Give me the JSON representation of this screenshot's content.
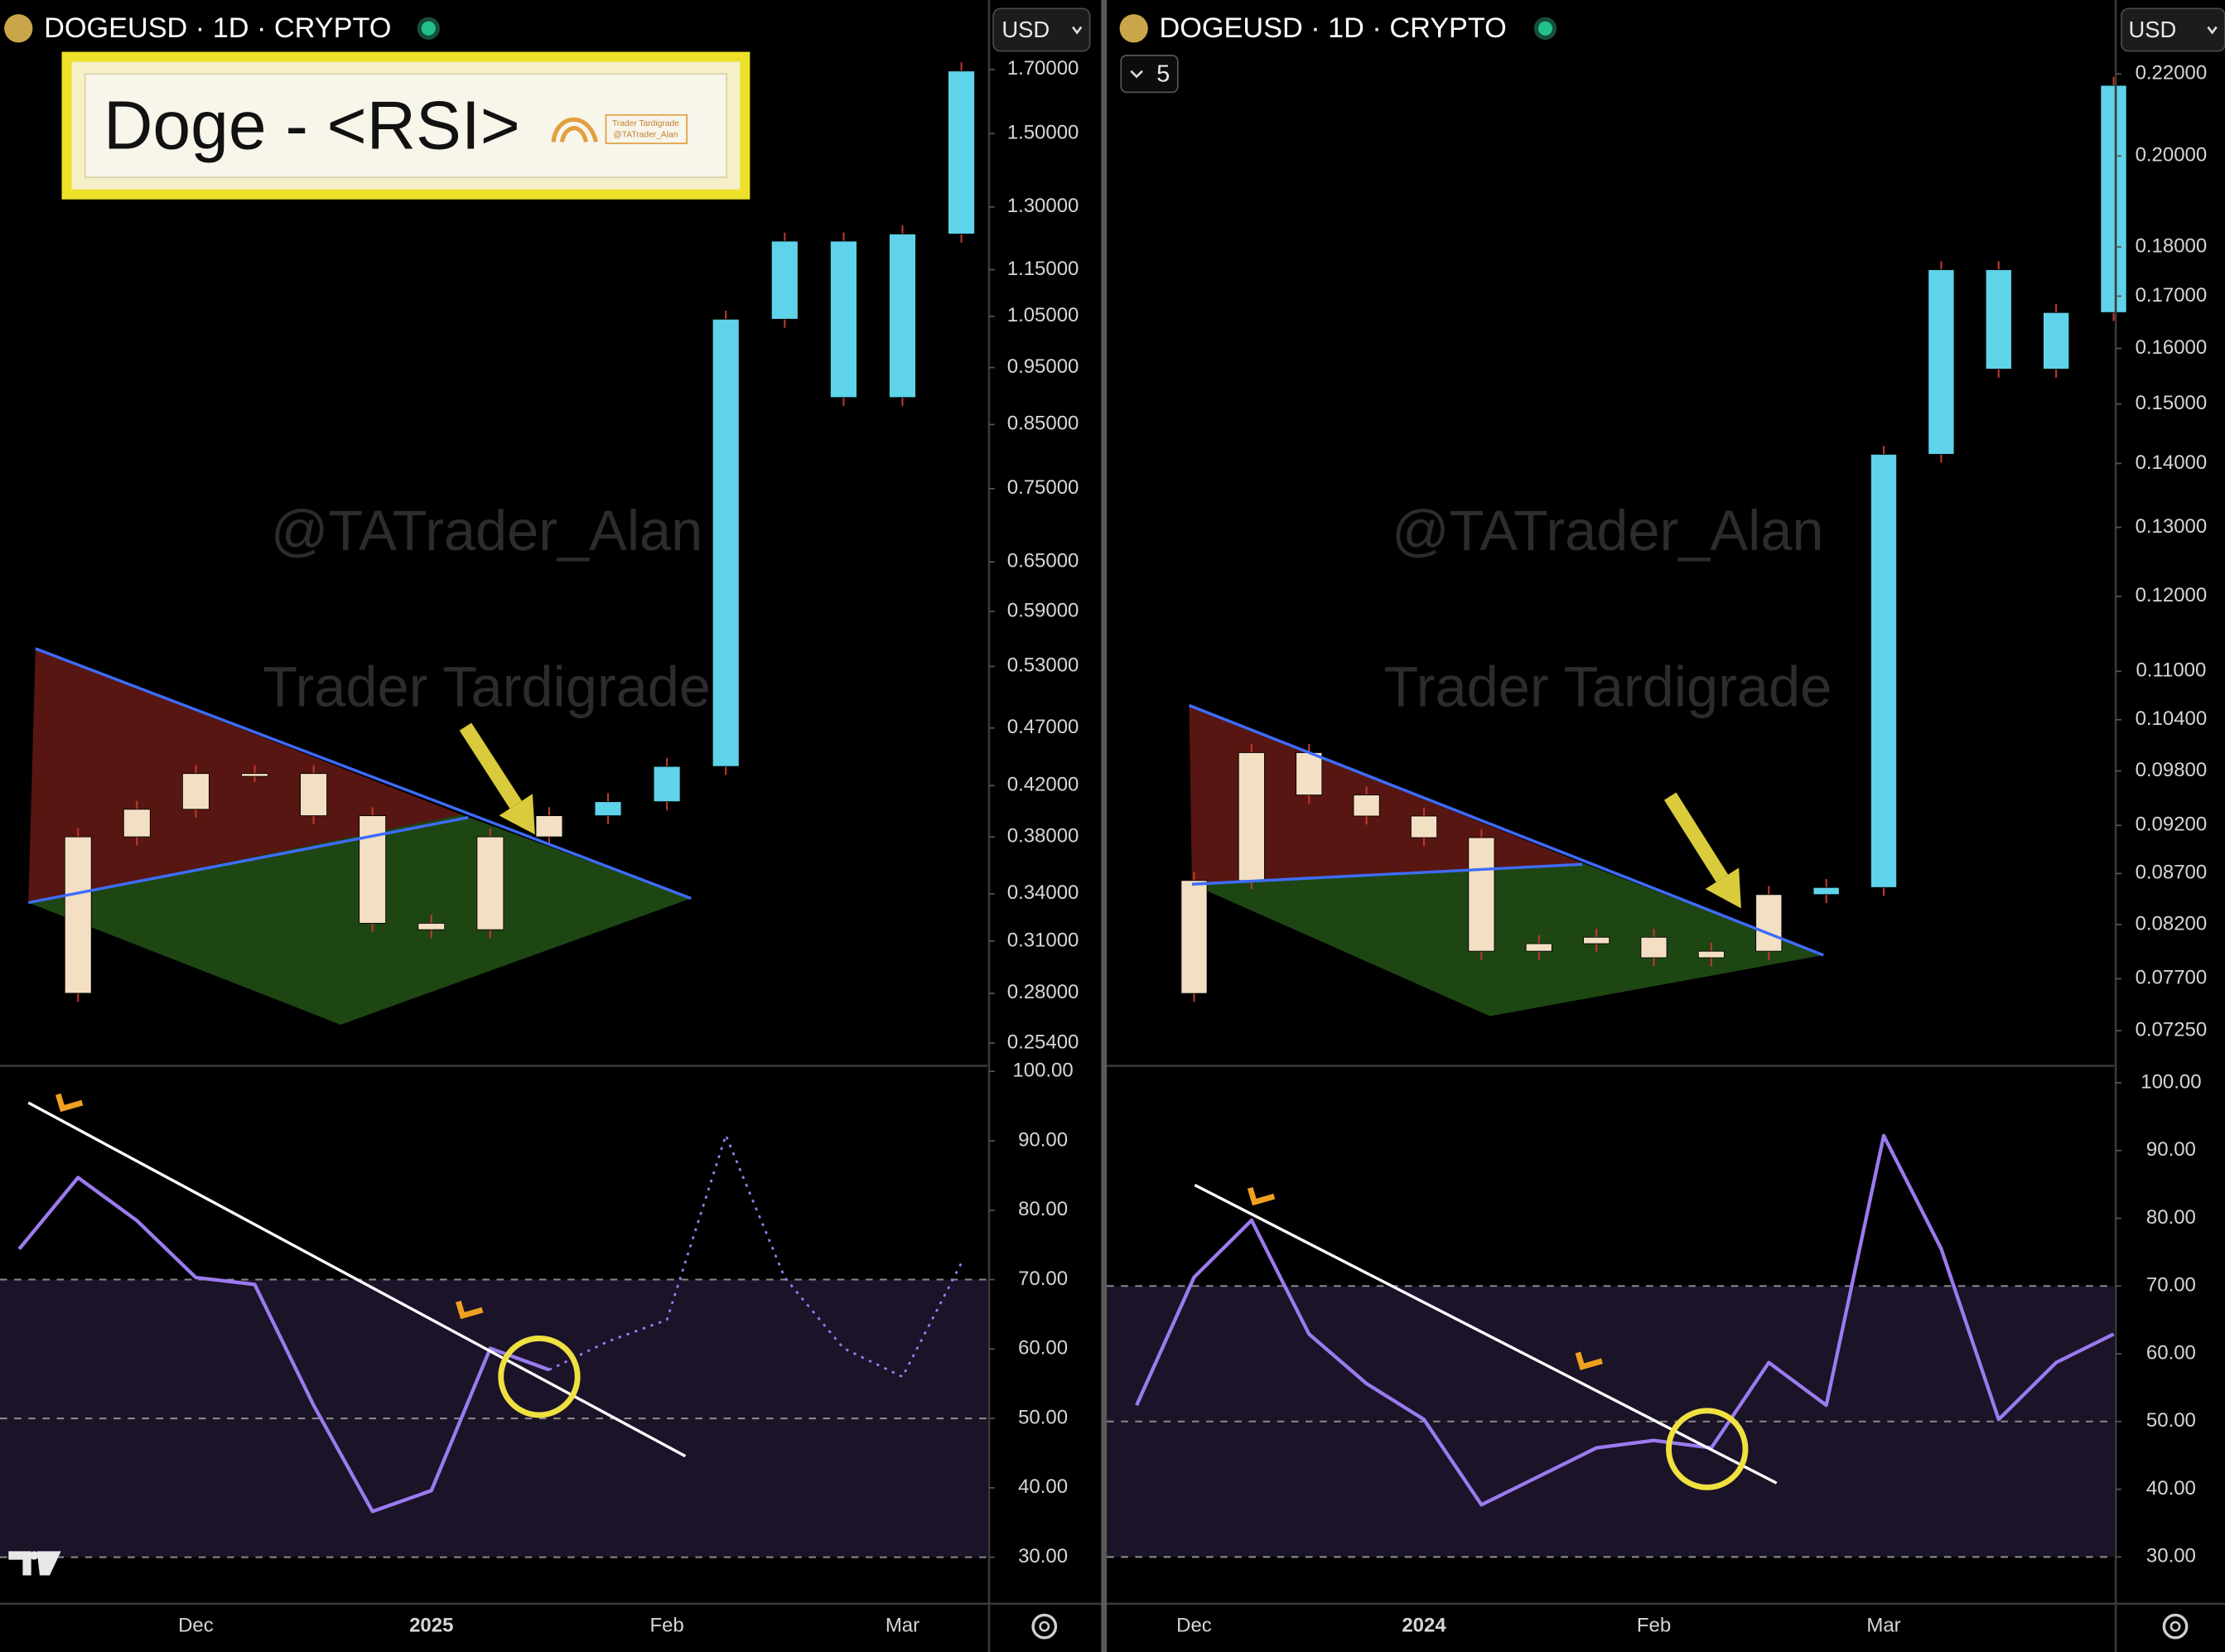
{
  "overlay": {
    "title": "Doge - <RSI>",
    "logo_text": [
      "Trader Tardigrade",
      "@TATrader_Alan"
    ]
  },
  "chart_data": [
    {
      "type": "candlestick",
      "title": "DOGEUSD · 1D · CRYPTO",
      "currency": "USD",
      "watermarks": [
        "@TATrader_Alan",
        "Trader Tardigrade"
      ],
      "categories": [
        null,
        null,
        null,
        "Dec",
        null,
        null,
        null,
        "2025",
        null,
        null,
        null,
        "Feb",
        null,
        null,
        null,
        "Mar",
        null
      ],
      "panes": [
        {
          "type": "candlestick",
          "log_scale": true,
          "ylim": [
            0.243,
            1.947
          ],
          "yticks": [
            {
              "value": 1.7,
              "label": "1.70000"
            },
            {
              "value": 1.5,
              "label": "1.50000"
            },
            {
              "value": 1.3,
              "label": "1.30000"
            },
            {
              "value": 1.15,
              "label": "1.15000"
            },
            {
              "value": 1.05,
              "label": "1.05000"
            },
            {
              "value": 0.95,
              "label": "0.95000"
            },
            {
              "value": 0.85,
              "label": "0.85000"
            },
            {
              "value": 0.75,
              "label": "0.75000"
            },
            {
              "value": 0.65,
              "label": "0.65000"
            },
            {
              "value": 0.59,
              "label": "0.59000"
            },
            {
              "value": 0.53,
              "label": "0.53000"
            },
            {
              "value": 0.47,
              "label": "0.47000"
            },
            {
              "value": 0.42,
              "label": "0.42000"
            },
            {
              "value": 0.38,
              "label": "0.38000"
            },
            {
              "value": 0.34,
              "label": "0.34000"
            },
            {
              "value": 0.31,
              "label": "0.31000"
            },
            {
              "value": 0.28,
              "label": "0.28000"
            },
            {
              "value": 0.254,
              "label": "0.25400"
            }
          ],
          "series": [
            {
              "color": "#f3dfc3",
              "values": [
                0.28,
                0.38,
                0.401,
                0.43,
                0.43,
                0.396,
                0.321,
                0.317,
                0.38,
                0.396,
                null,
                null,
                null,
                null,
                null,
                null,
                null
              ]
            },
            {
              "color": "#5fd3ea",
              "values": [
                null,
                null,
                null,
                null,
                null,
                null,
                null,
                null,
                null,
                0.396,
                0.407,
                0.436,
                1.044,
                1.216,
                0.896,
                1.233,
                1.695
              ]
            }
          ]
        },
        {
          "type": "line",
          "ylim": [
            23.3,
            100.8
          ],
          "band": [
            30,
            70
          ],
          "band_color": "#1b1328",
          "levels": [
            30,
            50,
            70
          ],
          "yticks": [
            {
              "value": 100,
              "label": "100.00"
            },
            {
              "value": 90,
              "label": "90.00"
            },
            {
              "value": 80,
              "label": "80.00"
            },
            {
              "value": 70,
              "label": "70.00"
            },
            {
              "value": 60,
              "label": "60.00"
            },
            {
              "value": 50,
              "label": "50.00"
            },
            {
              "value": 40,
              "label": "40.00"
            },
            {
              "value": 30,
              "label": "30.00"
            }
          ],
          "series": [
            {
              "color": "#9b7bef",
              "values": [
                74.4,
                84.7,
                78.5,
                70.3,
                69.3,
                51.9,
                36.6,
                39.6,
                60.1,
                57.0,
                null,
                null,
                null,
                null,
                null,
                null,
                null
              ]
            },
            {
              "color": "#9b7bef",
              "dashed": true,
              "values": [
                null,
                null,
                null,
                null,
                null,
                null,
                null,
                null,
                null,
                57.0,
                61.1,
                64.2,
                90.8,
                70.3,
                60.1,
                56.0,
                72.4
              ]
            }
          ]
        }
      ]
    },
    {
      "type": "candlestick",
      "title": "DOGEUSD · 1D · CRYPTO",
      "currency": "USD",
      "badge": "5",
      "watermarks": [
        "@TATrader_Alan",
        "Trader Tardigrade"
      ],
      "categories": [
        null,
        "Dec",
        null,
        null,
        null,
        "2024",
        null,
        null,
        null,
        "Feb",
        null,
        null,
        null,
        "Mar",
        null,
        null,
        null,
        null
      ],
      "panes": [
        {
          "type": "candlestick",
          "log_scale": true,
          "ylim": [
            0.0696,
            0.2397
          ],
          "yticks": [
            {
              "value": 0.22,
              "label": "0.22000"
            },
            {
              "value": 0.2,
              "label": "0.20000"
            },
            {
              "value": 0.18,
              "label": "0.18000"
            },
            {
              "value": 0.17,
              "label": "0.17000"
            },
            {
              "value": 0.16,
              "label": "0.16000"
            },
            {
              "value": 0.15,
              "label": "0.15000"
            },
            {
              "value": 0.14,
              "label": "0.14000"
            },
            {
              "value": 0.13,
              "label": "0.13000"
            },
            {
              "value": 0.12,
              "label": "0.12000"
            },
            {
              "value": 0.11,
              "label": "0.11000"
            },
            {
              "value": 0.104,
              "label": "0.10400"
            },
            {
              "value": 0.098,
              "label": "0.09800"
            },
            {
              "value": 0.092,
              "label": "0.09200"
            },
            {
              "value": 0.087,
              "label": "0.08700"
            },
            {
              "value": 0.082,
              "label": "0.08200"
            },
            {
              "value": 0.077,
              "label": "0.07700"
            },
            {
              "value": 0.0725,
              "label": "0.07250"
            }
          ],
          "series": [
            {
              "color": "#f3dfc3",
              "values": [
                0.0757,
                0.0863,
                0.1001,
                0.0953,
                0.093,
                0.0907,
                0.0795,
                0.0802,
                0.0808,
                0.0789,
                0.0795,
                0.0849,
                null,
                null,
                null,
                null,
                null,
                null
              ]
            },
            {
              "color": "#5fd3ea",
              "values": [
                null,
                null,
                null,
                null,
                null,
                null,
                null,
                null,
                null,
                null,
                null,
                0.0849,
                0.0856,
                0.1415,
                0.1753,
                0.1562,
                0.1668,
                0.2171
              ]
            }
          ]
        },
        {
          "type": "line",
          "ylim": [
            23.1,
            102.5
          ],
          "band": [
            30,
            70
          ],
          "band_color": "#1b1328",
          "levels": [
            30,
            50,
            70
          ],
          "yticks": [
            {
              "value": 100,
              "label": "100.00"
            },
            {
              "value": 90,
              "label": "90.00"
            },
            {
              "value": 80,
              "label": "80.00"
            },
            {
              "value": 70,
              "label": "70.00"
            },
            {
              "value": 60,
              "label": "60.00"
            },
            {
              "value": 50,
              "label": "50.00"
            },
            {
              "value": 40,
              "label": "40.00"
            },
            {
              "value": 30,
              "label": "30.00"
            }
          ],
          "series": [
            {
              "color": "#9b7bef",
              "values": [
                52.4,
                71.3,
                79.7,
                62.9,
                55.6,
                50.3,
                37.7,
                41.9,
                46.1,
                47.2,
                46.1,
                58.7,
                52.4,
                92.2,
                75.5,
                50.3,
                58.7,
                62.9
              ]
            }
          ]
        }
      ]
    }
  ]
}
